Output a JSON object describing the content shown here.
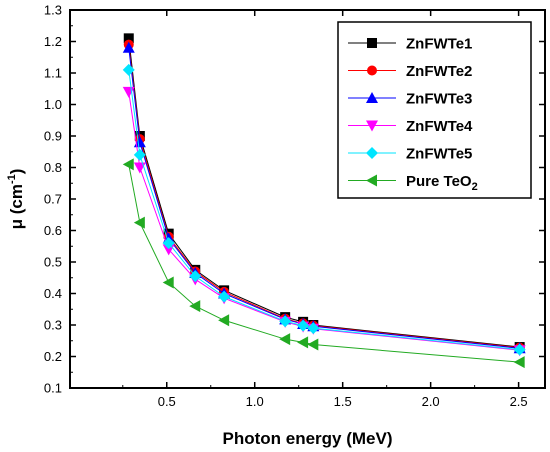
{
  "chart_data": {
    "type": "line",
    "xlabel": "Photon energy (MeV)",
    "ylabel": {
      "base": "μ (cm",
      "sup": "-1",
      "close": ")"
    },
    "xlim": [
      -0.05,
      2.65
    ],
    "ylim": [
      0.1,
      1.3
    ],
    "xticks": [
      0.5,
      1.0,
      1.5,
      2.0,
      2.5
    ],
    "xtick_labels": [
      "0.5",
      "1.0",
      "1.5",
      "2.0",
      "2.5"
    ],
    "yticks": [
      0.1,
      0.2,
      0.3,
      0.4,
      0.5,
      0.6,
      0.7,
      0.8,
      0.9,
      1.0,
      1.1,
      1.2,
      1.3
    ],
    "ytick_labels": [
      "0.1",
      "0.2",
      "0.3",
      "0.4",
      "0.5",
      "0.6",
      "0.7",
      "0.8",
      "0.9",
      "1.0",
      "1.1",
      "1.2",
      "1.3"
    ],
    "legend_position": "top-right",
    "grid": false,
    "x": [
      0.284,
      0.347,
      0.511,
      0.662,
      0.826,
      1.173,
      1.275,
      1.333,
      2.506
    ],
    "series": [
      {
        "name": "ZnFWTe1",
        "color": "#000000",
        "marker": "square",
        "values": [
          1.21,
          0.9,
          0.59,
          0.475,
          0.41,
          0.325,
          0.31,
          0.3,
          0.23
        ]
      },
      {
        "name": "ZnFWTe2",
        "color": "#ff0000",
        "marker": "circle",
        "values": [
          1.19,
          0.89,
          0.58,
          0.47,
          0.405,
          0.32,
          0.305,
          0.298,
          0.228
        ]
      },
      {
        "name": "ZnFWTe3",
        "color": "#0000ff",
        "marker": "triangle-up",
        "values": [
          1.18,
          0.88,
          0.575,
          0.465,
          0.4,
          0.318,
          0.303,
          0.296,
          0.226
        ]
      },
      {
        "name": "ZnFWTe4",
        "color": "#ff00ff",
        "marker": "triangle-down",
        "values": [
          1.04,
          0.8,
          0.54,
          0.445,
          0.385,
          0.31,
          0.295,
          0.288,
          0.22
        ]
      },
      {
        "name": "ZnFWTe5",
        "color": "#00e5ff",
        "marker": "diamond",
        "values": [
          1.11,
          0.84,
          0.56,
          0.455,
          0.39,
          0.312,
          0.298,
          0.29,
          0.222
        ]
      },
      {
        "name": {
          "base": "Pure TeO",
          "sub": "2"
        },
        "color": "#22aa22",
        "marker": "triangle-left",
        "values": [
          0.81,
          0.625,
          0.435,
          0.36,
          0.315,
          0.255,
          0.245,
          0.238,
          0.182
        ]
      }
    ]
  }
}
